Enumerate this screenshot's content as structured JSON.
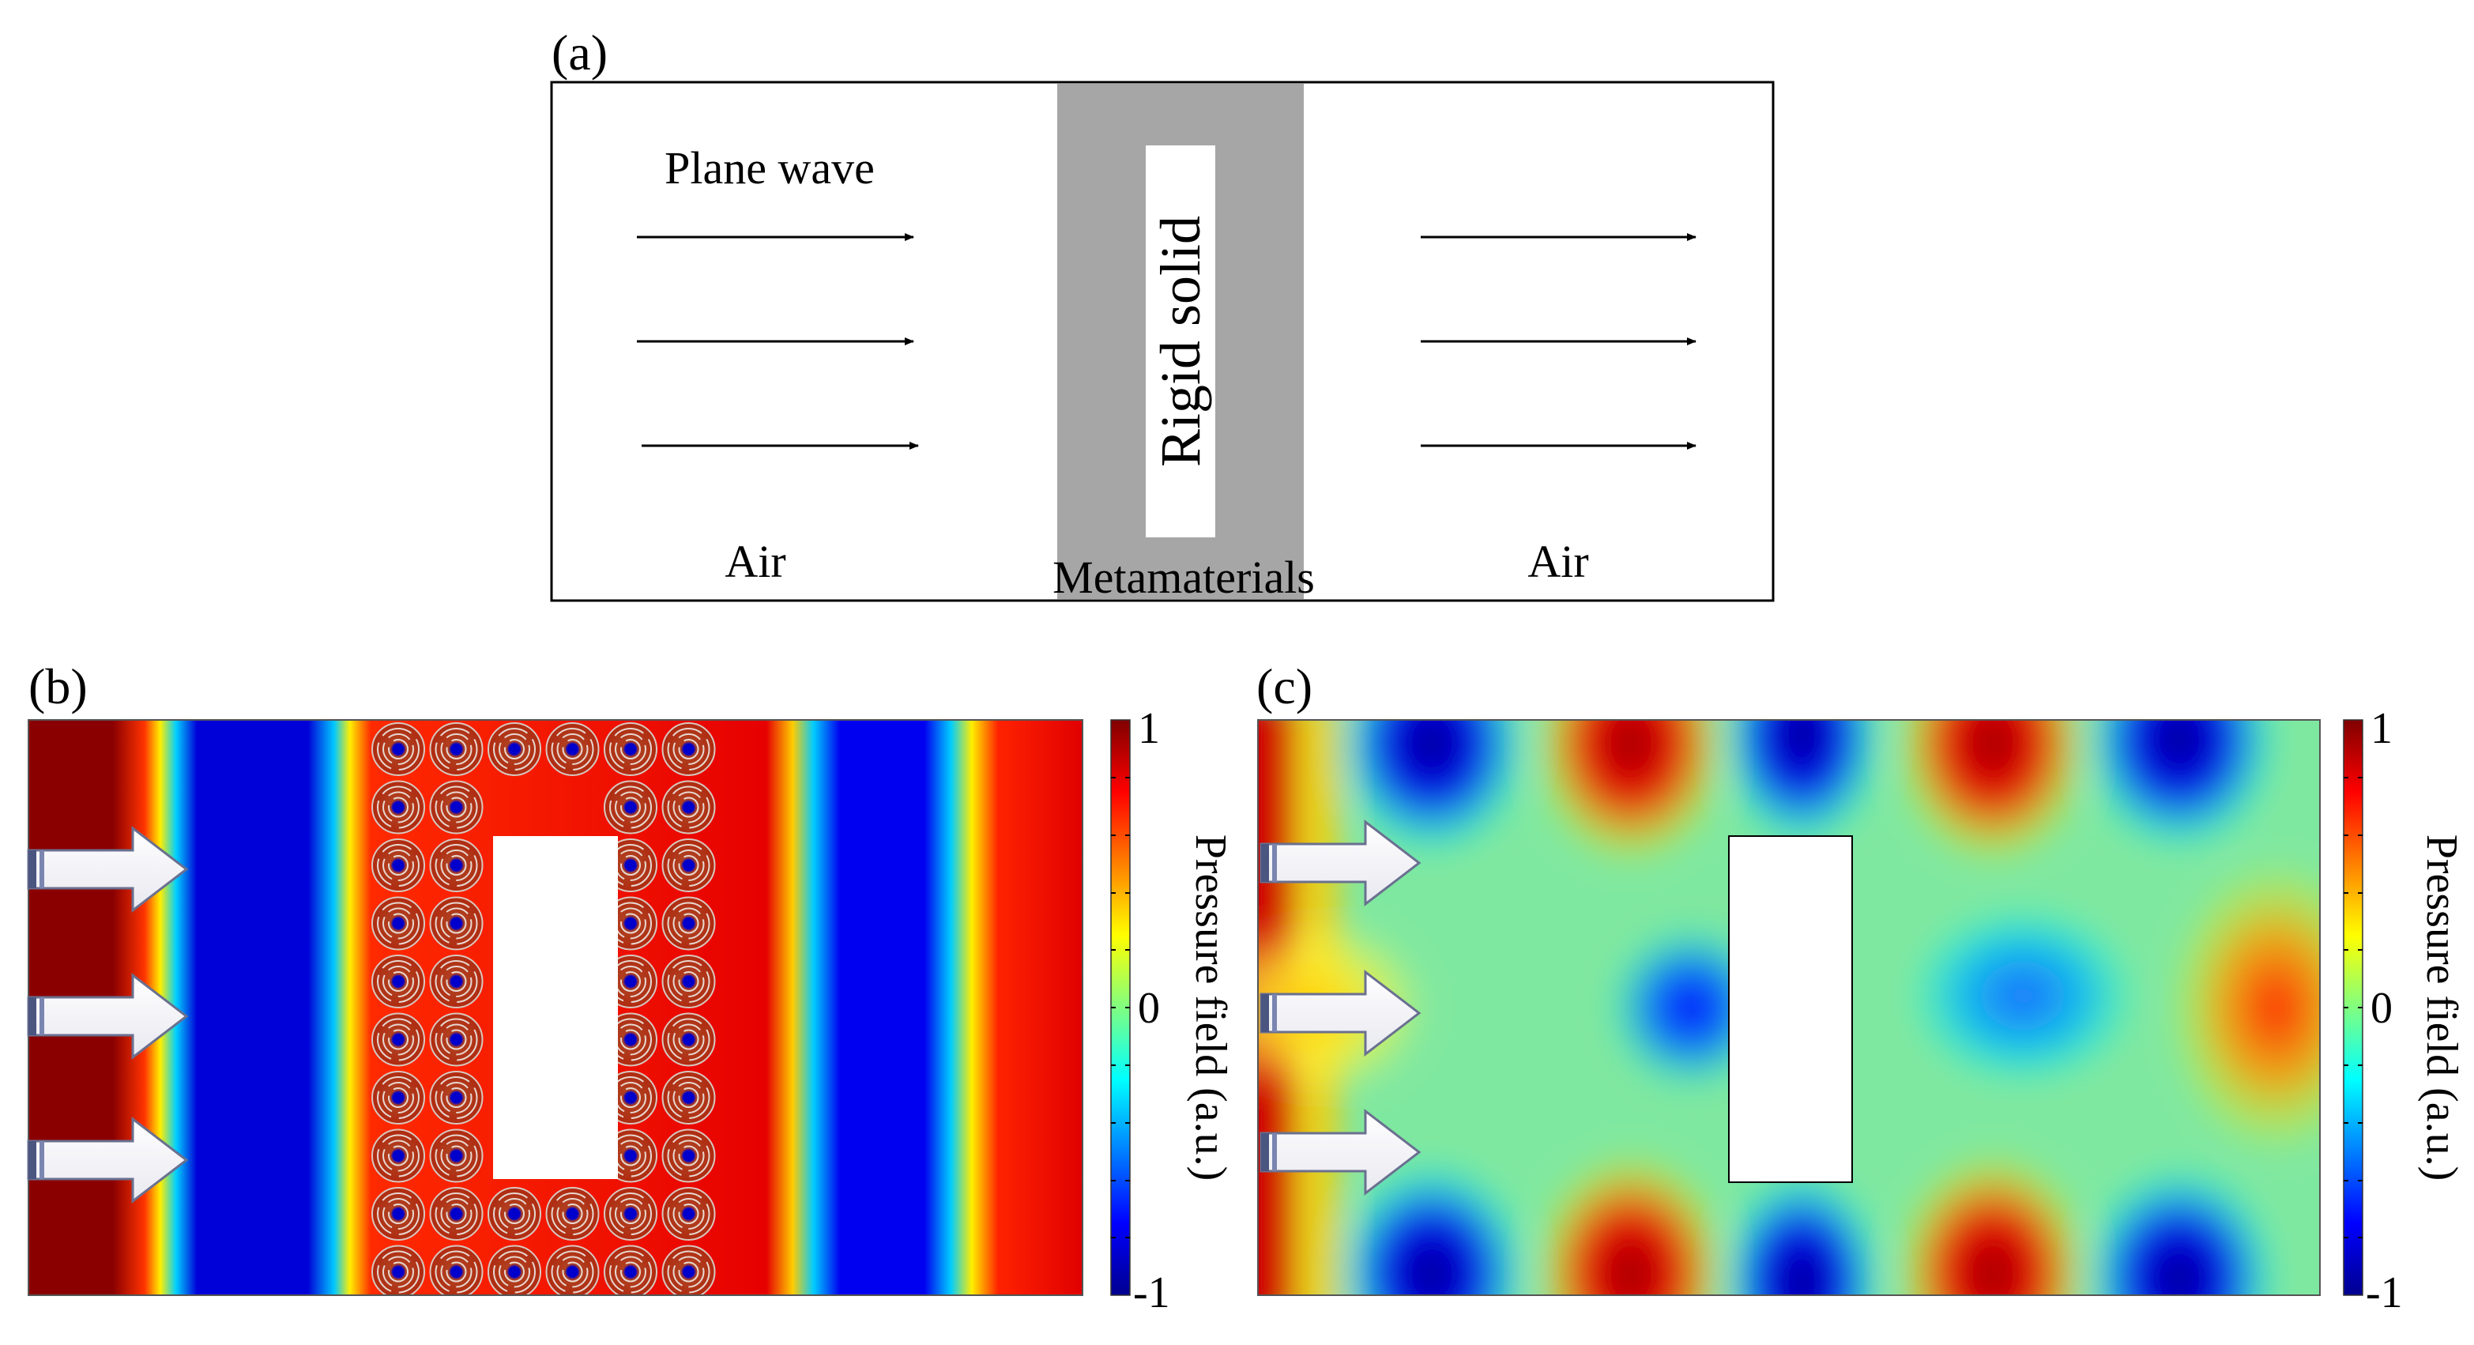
{
  "panel_a": {
    "label": "(a)",
    "plane_wave_label": "Plane wave",
    "rigid_label": "Rigid solid",
    "meta_label": "Metamaterials",
    "air_left": "Air",
    "air_right": "Air",
    "shell_color": "#a6a6a6"
  },
  "panel_b": {
    "label": "(b)",
    "colorbar": {
      "max_label": "1",
      "zero_label": "0",
      "min_label": "-1",
      "title": "Pressure field (a.u.)"
    }
  },
  "panel_c": {
    "label": "(c)",
    "colorbar": {
      "max_label": "1",
      "zero_label": "0",
      "min_label": "-1",
      "title": "Pressure field (a.u.)"
    }
  },
  "colormap": [
    "#00008f",
    "#0000ff",
    "#00ffff",
    "#ffff00",
    "#ff0000",
    "#800000"
  ]
}
